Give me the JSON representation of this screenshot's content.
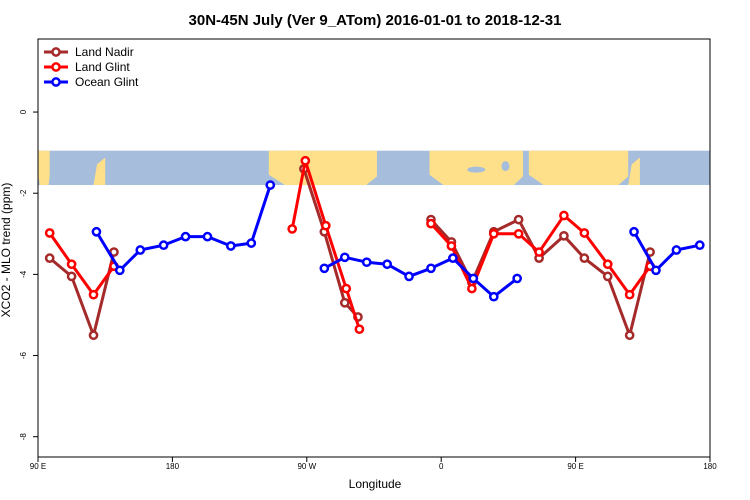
{
  "chart_data": {
    "type": "line",
    "title": "30N-45N July (Ver 9_ATom)   2016-01-01 to 2018-12-31",
    "xlabel": "Longitude",
    "ylabel": "XCO2 - MLO trend (ppm)",
    "xlim": [
      0,
      460
    ],
    "ylim": [
      -8.5,
      1.8
    ],
    "x_ticks": [
      {
        "value": 0,
        "label": "90 E"
      },
      {
        "value": 92,
        "label": "180"
      },
      {
        "value": 184,
        "label": "90 W"
      },
      {
        "value": 276,
        "label": "0"
      },
      {
        "value": 368,
        "label": "90 E"
      },
      {
        "value": 460,
        "label": "180"
      }
    ],
    "y_ticks": [
      0,
      -2,
      -4,
      -6,
      -8
    ],
    "map_band": {
      "y_top": -0.95,
      "y_bottom": -1.8,
      "ocean_color": "#a6bddb",
      "land_color": "#fee08b"
    },
    "legend_position": "top-left",
    "series": [
      {
        "name": "Land Nadir",
        "color": "#a52a2a",
        "segments": [
          [
            [
              8,
              -3.6
            ],
            [
              23,
              -4.05
            ],
            [
              38,
              -5.5
            ],
            [
              52,
              -3.45
            ]
          ],
          [
            [
              182,
              -1.4
            ],
            [
              196,
              -2.95
            ],
            [
              210,
              -4.7
            ],
            [
              219,
              -5.05
            ]
          ],
          [
            [
              269,
              -2.65
            ],
            [
              283,
              -3.2
            ],
            [
              297,
              -4.2
            ],
            [
              312,
              -2.95
            ],
            [
              329,
              -2.65
            ],
            [
              343,
              -3.6
            ],
            [
              360,
              -3.05
            ],
            [
              374,
              -3.6
            ],
            [
              390,
              -4.05
            ],
            [
              405,
              -5.5
            ],
            [
              419,
              -3.45
            ]
          ]
        ]
      },
      {
        "name": "Land Glint",
        "color": "#ff0000",
        "segments": [
          [
            [
              8,
              -2.98
            ],
            [
              23,
              -3.75
            ],
            [
              38,
              -4.5
            ],
            [
              52,
              -3.8
            ]
          ],
          [
            [
              174,
              -2.88
            ],
            [
              183,
              -1.2
            ],
            [
              197,
              -2.8
            ],
            [
              211,
              -4.35
            ],
            [
              220,
              -5.35
            ]
          ],
          [
            [
              269,
              -2.75
            ],
            [
              283,
              -3.3
            ],
            [
              297,
              -4.35
            ],
            [
              312,
              -3.0
            ],
            [
              329,
              -3.0
            ],
            [
              343,
              -3.45
            ],
            [
              360,
              -2.55
            ],
            [
              374,
              -2.98
            ],
            [
              390,
              -3.75
            ],
            [
              405,
              -4.5
            ],
            [
              419,
              -3.8
            ]
          ]
        ]
      },
      {
        "name": "Ocean Glint",
        "color": "#0000ff",
        "segments": [
          [
            [
              40,
              -2.95
            ],
            [
              56,
              -3.9
            ],
            [
              70,
              -3.4
            ],
            [
              86,
              -3.28
            ],
            [
              101,
              -3.07
            ],
            [
              116,
              -3.07
            ],
            [
              132,
              -3.3
            ],
            [
              146,
              -3.23
            ],
            [
              159,
              -1.8
            ]
          ],
          [
            [
              196,
              -3.85
            ],
            [
              210,
              -3.58
            ],
            [
              225,
              -3.7
            ],
            [
              239,
              -3.75
            ],
            [
              254,
              -4.05
            ],
            [
              269,
              -3.85
            ],
            [
              284,
              -3.6
            ],
            [
              298,
              -4.1
            ],
            [
              312,
              -4.55
            ],
            [
              328,
              -4.1
            ]
          ],
          [
            [
              408,
              -2.95
            ],
            [
              423,
              -3.9
            ],
            [
              437,
              -3.4
            ],
            [
              453,
              -3.28
            ]
          ]
        ]
      }
    ]
  }
}
